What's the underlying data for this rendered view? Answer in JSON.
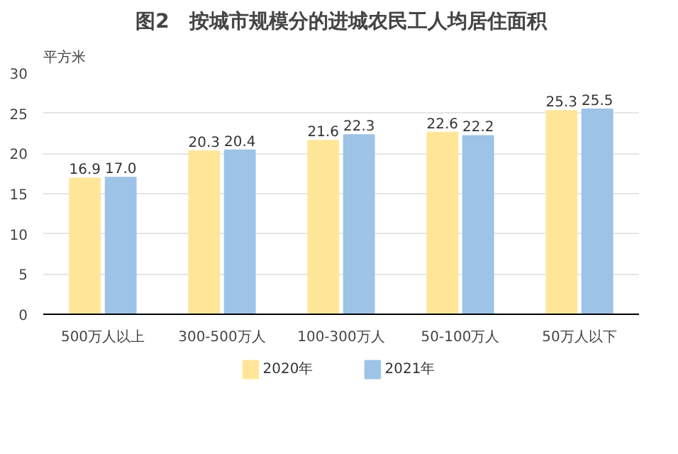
{
  "chart_data": {
    "type": "bar",
    "title": "图2　按城市规模分的进城农民工人均居住面积",
    "ylabel": "平方米",
    "categories": [
      "500万人以上",
      "300-500万人",
      "100-300万人",
      "50-100万人",
      "50万人以下"
    ],
    "series": [
      {
        "name": "2020年",
        "color": "#ffe699",
        "values": [
          16.9,
          20.3,
          21.6,
          22.6,
          25.3
        ],
        "value_labels": [
          "16.9",
          "20.3",
          "21.6",
          "22.6",
          "25.3"
        ]
      },
      {
        "name": "2021年",
        "color": "#9dc3e6",
        "values": [
          17.0,
          20.4,
          22.3,
          22.2,
          25.5
        ],
        "value_labels": [
          "17.0",
          "20.4",
          "22.3",
          "22.2",
          "25.5"
        ]
      }
    ],
    "ylim": [
      0,
      30
    ],
    "yticks": [
      0,
      5,
      10,
      15,
      20,
      25,
      30
    ],
    "grid": "y",
    "legend": "bottom"
  }
}
